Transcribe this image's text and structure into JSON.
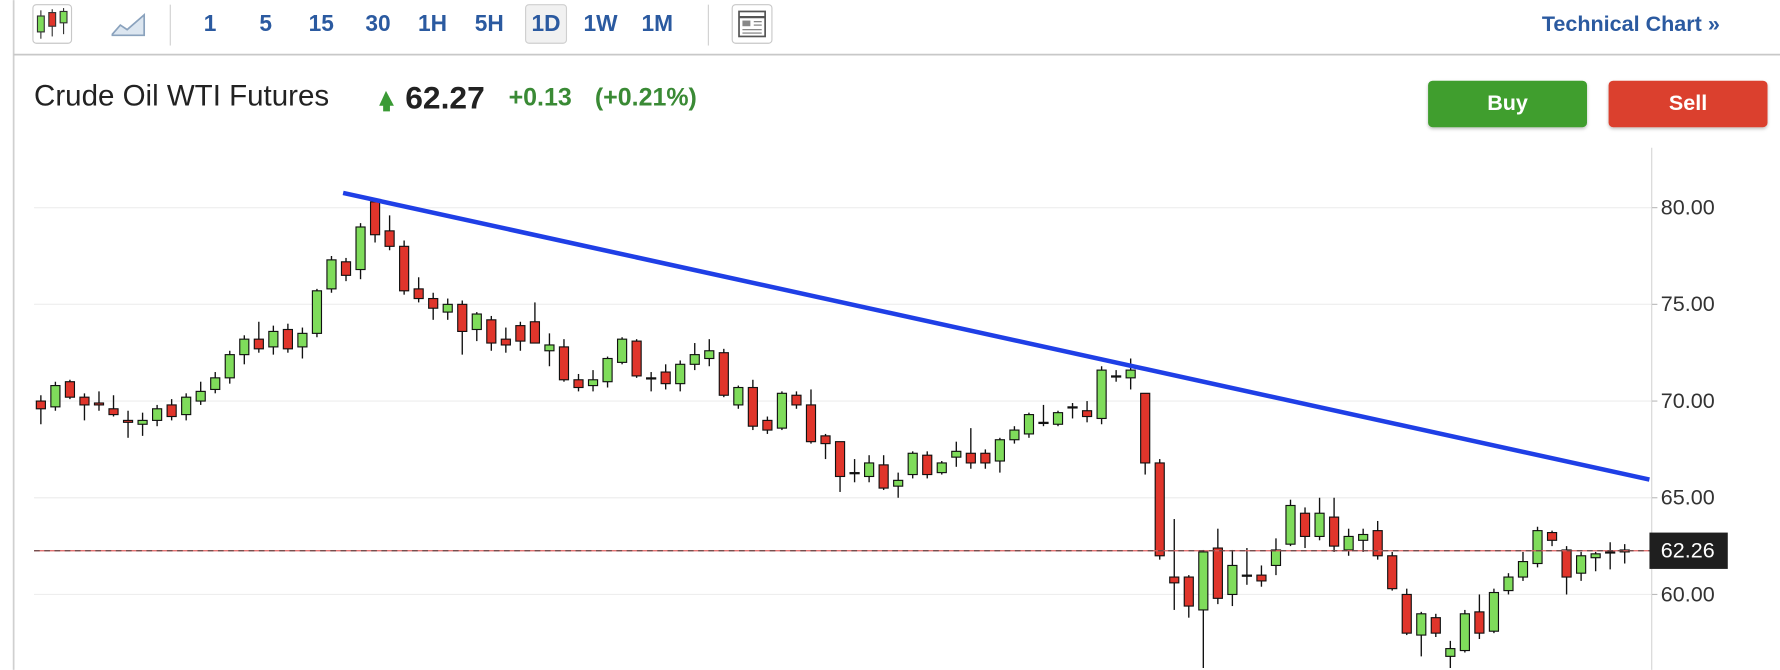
{
  "toolbar": {
    "intervals": [
      "1",
      "5",
      "15",
      "30",
      "1H",
      "5H",
      "1D",
      "1W",
      "1M"
    ],
    "selected_interval": 6,
    "link": "Technical Chart »"
  },
  "quote": {
    "name": "Crude Oil WTI Futures",
    "price": 62.27,
    "change": "+0.13",
    "change_percent": "(+0.21%)",
    "buy": "Buy",
    "sell": "Sell"
  },
  "chart_data": {
    "type": "candlestick",
    "up_color": "#7fdc5b",
    "down_color": "#e0352b",
    "trend_color": "#1f3fe6",
    "ylim": [
      56.1,
      83.1
    ],
    "yticks": [
      {
        "value": 60,
        "label": "60.00"
      },
      {
        "value": 65,
        "label": "65.00"
      },
      {
        "value": 70,
        "label": "70.00"
      },
      {
        "value": 75,
        "label": "75.00"
      },
      {
        "value": 80,
        "label": "80.00"
      }
    ],
    "grid": true,
    "last_price": 62.26,
    "trendline": {
      "start": [
        20.8,
        80.76
      ],
      "end": [
        110.7,
        65.94
      ]
    },
    "ohlc": [
      [
        70.0,
        70.3,
        68.8,
        69.6
      ],
      [
        69.7,
        71.0,
        69.5,
        70.8
      ],
      [
        71.0,
        71.1,
        70.1,
        70.2
      ],
      [
        70.2,
        70.4,
        69.0,
        69.8
      ],
      [
        69.9,
        70.5,
        69.5,
        69.8
      ],
      [
        69.6,
        70.3,
        69.2,
        69.3
      ],
      [
        69.0,
        69.5,
        68.1,
        68.9
      ],
      [
        68.8,
        69.4,
        68.2,
        69.0
      ],
      [
        69.0,
        69.8,
        68.7,
        69.6
      ],
      [
        69.8,
        70.1,
        69.0,
        69.2
      ],
      [
        69.3,
        70.4,
        69.0,
        70.2
      ],
      [
        70.0,
        71.0,
        69.8,
        70.5
      ],
      [
        70.6,
        71.5,
        70.4,
        71.2
      ],
      [
        71.2,
        72.6,
        70.9,
        72.4
      ],
      [
        72.4,
        73.4,
        71.9,
        73.2
      ],
      [
        73.2,
        74.1,
        72.5,
        72.7
      ],
      [
        72.8,
        73.9,
        72.4,
        73.6
      ],
      [
        73.7,
        74.0,
        72.5,
        72.7
      ],
      [
        72.8,
        73.8,
        72.2,
        73.5
      ],
      [
        73.5,
        75.8,
        73.3,
        75.7
      ],
      [
        75.8,
        77.5,
        75.6,
        77.3
      ],
      [
        77.2,
        77.4,
        76.2,
        76.5
      ],
      [
        76.8,
        79.2,
        76.3,
        79.0
      ],
      [
        80.3,
        80.5,
        78.2,
        78.6
      ],
      [
        78.8,
        79.6,
        77.8,
        78.0
      ],
      [
        78.0,
        78.3,
        75.5,
        75.7
      ],
      [
        75.8,
        76.4,
        75.1,
        75.3
      ],
      [
        75.3,
        75.6,
        74.2,
        74.8
      ],
      [
        74.6,
        75.3,
        74.2,
        75.0
      ],
      [
        75.0,
        75.2,
        72.4,
        73.6
      ],
      [
        73.7,
        74.6,
        73.1,
        74.5
      ],
      [
        74.2,
        74.4,
        72.6,
        73.0
      ],
      [
        73.2,
        73.8,
        72.5,
        72.9
      ],
      [
        73.9,
        74.1,
        72.6,
        73.1
      ],
      [
        74.1,
        75.1,
        73.0,
        73.0
      ],
      [
        72.6,
        73.5,
        71.8,
        72.9
      ],
      [
        72.8,
        73.2,
        71.0,
        71.1
      ],
      [
        71.1,
        71.4,
        70.5,
        70.7
      ],
      [
        70.8,
        71.6,
        70.5,
        71.1
      ],
      [
        71.0,
        72.3,
        70.7,
        72.2
      ],
      [
        72.0,
        73.3,
        71.9,
        73.2
      ],
      [
        73.1,
        73.2,
        71.2,
        71.3
      ],
      [
        71.2,
        71.5,
        70.5,
        71.2
      ],
      [
        71.5,
        71.9,
        70.6,
        70.9
      ],
      [
        70.9,
        72.1,
        70.5,
        71.9
      ],
      [
        71.9,
        73.0,
        71.6,
        72.4
      ],
      [
        72.2,
        73.2,
        71.8,
        72.6
      ],
      [
        72.5,
        72.7,
        70.2,
        70.3
      ],
      [
        69.8,
        70.8,
        69.6,
        70.7
      ],
      [
        70.7,
        71.1,
        68.5,
        68.7
      ],
      [
        69.0,
        69.2,
        68.3,
        68.5
      ],
      [
        68.6,
        70.5,
        68.5,
        70.4
      ],
      [
        70.3,
        70.5,
        69.6,
        69.8
      ],
      [
        69.8,
        70.6,
        67.8,
        67.9
      ],
      [
        68.2,
        68.3,
        67.0,
        67.8
      ],
      [
        67.9,
        67.9,
        65.3,
        66.1
      ],
      [
        66.3,
        67.0,
        65.8,
        66.3
      ],
      [
        66.1,
        67.2,
        65.8,
        66.8
      ],
      [
        66.7,
        67.2,
        65.4,
        65.5
      ],
      [
        65.6,
        66.3,
        65.0,
        65.9
      ],
      [
        66.2,
        67.4,
        66.0,
        67.3
      ],
      [
        67.2,
        67.4,
        66.0,
        66.2
      ],
      [
        66.3,
        66.9,
        66.2,
        66.8
      ],
      [
        67.1,
        67.9,
        66.6,
        67.4
      ],
      [
        67.3,
        68.6,
        66.5,
        66.8
      ],
      [
        67.3,
        67.5,
        66.5,
        66.8
      ],
      [
        66.9,
        68.1,
        66.3,
        68.0
      ],
      [
        68.0,
        68.7,
        67.8,
        68.5
      ],
      [
        68.3,
        69.4,
        68.1,
        69.3
      ],
      [
        68.9,
        69.8,
        68.7,
        68.9
      ],
      [
        68.8,
        69.5,
        68.7,
        69.4
      ],
      [
        69.7,
        69.9,
        69.1,
        69.7
      ],
      [
        69.5,
        70.0,
        68.9,
        69.2
      ],
      [
        69.1,
        71.8,
        68.8,
        71.6
      ],
      [
        71.3,
        71.6,
        71.0,
        71.3
      ],
      [
        71.2,
        72.2,
        70.6,
        71.6
      ],
      [
        70.4,
        70.4,
        66.2,
        66.8
      ],
      [
        66.8,
        67.0,
        61.8,
        62.0
      ],
      [
        60.9,
        63.9,
        59.2,
        60.6
      ],
      [
        60.9,
        61.0,
        58.8,
        59.4
      ],
      [
        59.2,
        62.3,
        56.2,
        62.2
      ],
      [
        62.4,
        63.4,
        59.5,
        59.8
      ],
      [
        60.0,
        62.3,
        59.4,
        61.5
      ],
      [
        61.0,
        62.4,
        60.5,
        61.0
      ],
      [
        61.0,
        61.5,
        60.4,
        60.7
      ],
      [
        61.5,
        62.9,
        61.0,
        62.3
      ],
      [
        62.6,
        64.9,
        62.5,
        64.6
      ],
      [
        64.2,
        64.5,
        62.4,
        63.0
      ],
      [
        63.0,
        65.0,
        62.8,
        64.2
      ],
      [
        64.0,
        65.0,
        62.2,
        62.5
      ],
      [
        62.3,
        63.4,
        62.0,
        63.0
      ],
      [
        62.8,
        63.4,
        62.2,
        63.1
      ],
      [
        63.3,
        63.8,
        61.8,
        62.0
      ],
      [
        62.0,
        62.2,
        60.2,
        60.3
      ],
      [
        60.0,
        60.3,
        57.9,
        58.0
      ],
      [
        57.9,
        59.1,
        56.8,
        59.0
      ],
      [
        58.8,
        59.0,
        57.8,
        58.0
      ],
      [
        56.8,
        57.6,
        56.2,
        57.2
      ],
      [
        57.1,
        59.2,
        57.0,
        59.0
      ],
      [
        59.1,
        60.0,
        57.7,
        58.0
      ],
      [
        58.1,
        60.3,
        58.0,
        60.1
      ],
      [
        60.2,
        61.1,
        60.0,
        60.9
      ],
      [
        60.9,
        62.2,
        60.7,
        61.7
      ],
      [
        61.6,
        63.5,
        61.4,
        63.3
      ],
      [
        63.2,
        63.3,
        62.5,
        62.8
      ],
      [
        62.3,
        62.5,
        60.0,
        60.9
      ],
      [
        61.1,
        62.2,
        60.7,
        62.0
      ],
      [
        61.9,
        62.2,
        61.2,
        62.1
      ],
      [
        62.2,
        62.7,
        61.3,
        62.2
      ],
      [
        62.2,
        62.6,
        61.6,
        62.3
      ]
    ]
  }
}
